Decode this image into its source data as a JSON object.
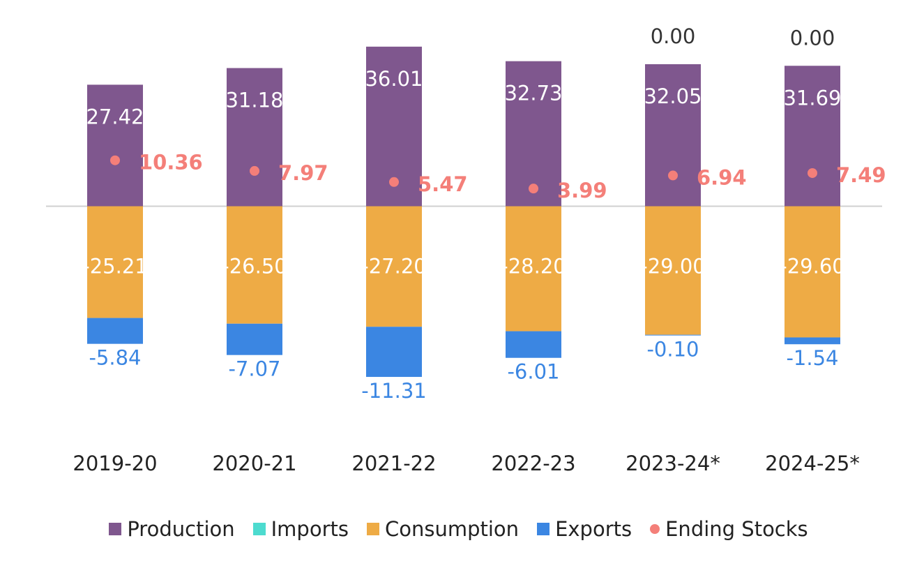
{
  "chart_data": {
    "type": "bar",
    "stacked": true,
    "categories": [
      "2019-20",
      "2020-21",
      "2021-22",
      "2022-23",
      "2023-24*",
      "2024-25*"
    ],
    "series": [
      {
        "name": "Production",
        "kind": "bar",
        "color": "#7f578e",
        "values": [
          27.42,
          31.18,
          36.01,
          32.73,
          32.05,
          31.69
        ]
      },
      {
        "name": "Imports",
        "kind": "bar",
        "color": "#4ddbcf",
        "values": [
          0.0,
          0.0,
          0.0,
          0.0,
          0.0,
          0.0
        ]
      },
      {
        "name": "Consumption",
        "kind": "bar",
        "color": "#eeab45",
        "values": [
          -25.21,
          -26.5,
          -27.2,
          -28.2,
          -29.0,
          -29.6
        ]
      },
      {
        "name": "Exports",
        "kind": "bar",
        "color": "#3b86e2",
        "values": [
          -5.84,
          -7.07,
          -11.31,
          -6.01,
          -0.1,
          -1.54
        ]
      },
      {
        "name": "Ending Stocks",
        "kind": "scatter",
        "color": "#f47f79",
        "values": [
          10.36,
          7.97,
          5.47,
          3.99,
          6.94,
          7.49
        ]
      }
    ],
    "data_labels": {
      "Production": [
        "27.42",
        "31.18",
        "36.01",
        "32.73",
        "32.05",
        "31.69"
      ],
      "Imports": [
        "",
        "",
        "",
        "",
        "0.00",
        "0.00"
      ],
      "Consumption": [
        "-25.21",
        "-26.50",
        "-27.20",
        "-28.20",
        "-29.00",
        "-29.60"
      ],
      "Exports": [
        "-5.84",
        "-7.07",
        "-11.31",
        "-6.01",
        "-0.10",
        "-1.54"
      ],
      "Ending Stocks": [
        "10.36",
        "7.97",
        "5.47",
        "3.99",
        "6.94",
        "7.49"
      ]
    },
    "title": "",
    "xlabel": "",
    "ylabel": "",
    "grid": false,
    "legend_position": "bottom"
  },
  "legend": [
    {
      "label": "Production",
      "color": "#7f578e",
      "marker": "square"
    },
    {
      "label": "Imports",
      "color": "#4ddbcf",
      "marker": "square"
    },
    {
      "label": "Consumption",
      "color": "#eeab45",
      "marker": "square"
    },
    {
      "label": "Exports",
      "color": "#3b86e2",
      "marker": "square"
    },
    {
      "label": "Ending Stocks",
      "color": "#f47f79",
      "marker": "circle"
    }
  ]
}
